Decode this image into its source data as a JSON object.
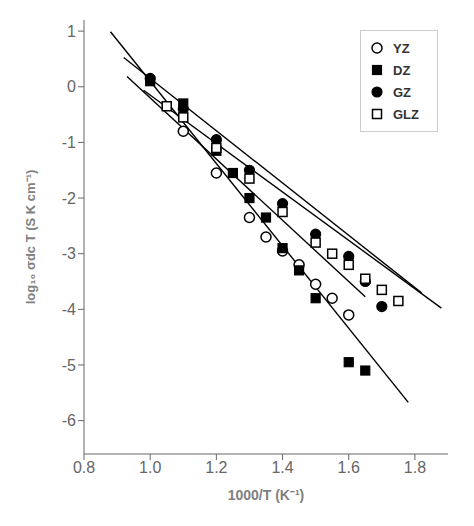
{
  "chart_data": {
    "type": "scatter",
    "xlabel": "1000/T (K⁻¹)",
    "ylabel": "log₁₀ σdc T (S K cm⁻¹)",
    "xlim": [
      0.8,
      1.9
    ],
    "ylim": [
      -6.6,
      1.2
    ],
    "xticks": [
      0.8,
      {
        "value": 1.0,
        "label": "1.0"
      },
      1.2,
      1.4,
      1.6,
      1.8
    ],
    "yticks": [
      -6,
      -5,
      -4,
      -3,
      -2,
      -1,
      0,
      1
    ],
    "grid": false,
    "legend": "upper right",
    "series": [
      {
        "name": "YZ",
        "color": "#000000",
        "marker": "open-circle",
        "x": [
          1.1,
          1.2,
          1.3,
          1.35,
          1.4,
          1.45,
          1.5,
          1.55,
          1.6
        ],
        "values": [
          -0.8,
          -1.55,
          -2.35,
          -2.7,
          -2.95,
          -3.2,
          -3.55,
          -3.8,
          -4.1
        ],
        "fit": {
          "x": [
            0.93,
            1.65
          ],
          "values": [
            0.185,
            -3.775
          ]
        }
      },
      {
        "name": "DZ",
        "color": "#000000",
        "marker": "square",
        "x": [
          1.0,
          1.1,
          1.2,
          1.25,
          1.3,
          1.35,
          1.4,
          1.45,
          1.5,
          1.6,
          1.65
        ],
        "values": [
          0.1,
          -0.3,
          -1.15,
          -1.55,
          -2.0,
          -2.35,
          -2.9,
          -3.3,
          -3.8,
          -4.95,
          -5.1
        ],
        "fit": {
          "x": [
            0.88,
            1.78
          ],
          "values": [
            0.988,
            -5.672
          ]
        }
      },
      {
        "name": "GZ",
        "color": "#000000",
        "marker": "circle",
        "x": [
          1.0,
          1.1,
          1.2,
          1.3,
          1.4,
          1.5,
          1.6,
          1.65,
          1.7
        ],
        "values": [
          0.15,
          -0.4,
          -0.95,
          -1.5,
          -2.1,
          -2.65,
          -3.05,
          -3.5,
          -3.95
        ],
        "fit": {
          "x": [
            0.92,
            1.82
          ],
          "values": [
            0.526,
            -3.704
          ]
        }
      },
      {
        "name": "GLZ",
        "color": "#000000",
        "marker": "open-square",
        "x": [
          1.05,
          1.1,
          1.2,
          1.3,
          1.4,
          1.5,
          1.55,
          1.6,
          1.65,
          1.7,
          1.75
        ],
        "values": [
          -0.35,
          -0.55,
          -1.1,
          -1.65,
          -2.25,
          -2.8,
          -3.0,
          -3.2,
          -3.45,
          -3.65,
          -3.85
        ],
        "fit": {
          "x": [
            0.98,
            1.88
          ],
          "values": [
            -0.063,
            -3.978
          ]
        }
      }
    ]
  }
}
